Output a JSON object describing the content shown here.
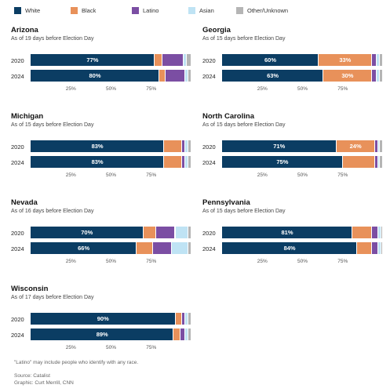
{
  "legend": [
    {
      "label": "White",
      "color": "#0b3d63"
    },
    {
      "label": "Black",
      "color": "#e8915a"
    },
    {
      "label": "Latino",
      "color": "#7b4ea3"
    },
    {
      "label": "Asian",
      "color": "#bfe3f4"
    },
    {
      "label": "Other/Unknown",
      "color": "#b5b5b5"
    }
  ],
  "tick_labels": [
    "25%",
    "50%",
    "75%"
  ],
  "notes": {
    "latino_note": "\"Latino\" may include people who identify with any race.",
    "source": "Source: Catalist",
    "credit": "Graphic: Curt Merrill, CNN"
  },
  "chart_data": [
    {
      "type": "bar",
      "title": "Arizona",
      "subtitle": "As of 19 days before Election Day",
      "categories": [
        "2020",
        "2024"
      ],
      "categories_are": "years",
      "stacked": true,
      "orientation": "horizontal",
      "xlim": [
        0,
        100
      ],
      "series": [
        {
          "name": "White",
          "values": [
            77,
            80
          ],
          "labels": [
            "77%",
            "80%"
          ]
        },
        {
          "name": "Black",
          "values": [
            5,
            4
          ],
          "labels": [
            "",
            ""
          ]
        },
        {
          "name": "Latino",
          "values": [
            13,
            12
          ],
          "labels": [
            "",
            ""
          ]
        },
        {
          "name": "Asian",
          "values": [
            2,
            2
          ],
          "labels": [
            "",
            ""
          ]
        },
        {
          "name": "Other/Unknown",
          "values": [
            3,
            2
          ],
          "labels": [
            "",
            ""
          ]
        }
      ]
    },
    {
      "type": "bar",
      "title": "Georgia",
      "subtitle": "As of 15 days before Election Day",
      "categories": [
        "2020",
        "2024"
      ],
      "stacked": true,
      "orientation": "horizontal",
      "xlim": [
        0,
        100
      ],
      "series": [
        {
          "name": "White",
          "values": [
            60,
            63
          ],
          "labels": [
            "60%",
            "63%"
          ]
        },
        {
          "name": "Black",
          "values": [
            33,
            30
          ],
          "labels": [
            "33%",
            "30%"
          ]
        },
        {
          "name": "Latino",
          "values": [
            3,
            3
          ],
          "labels": [
            "",
            ""
          ]
        },
        {
          "name": "Asian",
          "values": [
            2,
            2
          ],
          "labels": [
            "",
            ""
          ]
        },
        {
          "name": "Other/Unknown",
          "values": [
            2,
            2
          ],
          "labels": [
            "",
            ""
          ]
        }
      ]
    },
    {
      "type": "bar",
      "title": "Michigan",
      "subtitle": "As of 15 days before Election Day",
      "categories": [
        "2020",
        "2024"
      ],
      "stacked": true,
      "orientation": "horizontal",
      "xlim": [
        0,
        100
      ],
      "series": [
        {
          "name": "White",
          "values": [
            83,
            83
          ],
          "labels": [
            "83%",
            "83%"
          ]
        },
        {
          "name": "Black",
          "values": [
            11,
            11
          ],
          "labels": [
            "",
            ""
          ]
        },
        {
          "name": "Latino",
          "values": [
            2,
            2
          ],
          "labels": [
            "",
            ""
          ]
        },
        {
          "name": "Asian",
          "values": [
            2,
            2
          ],
          "labels": [
            "",
            ""
          ]
        },
        {
          "name": "Other/Unknown",
          "values": [
            2,
            2
          ],
          "labels": [
            "",
            ""
          ]
        }
      ]
    },
    {
      "type": "bar",
      "title": "North Carolina",
      "subtitle": "As of 15 days before Election Day",
      "categories": [
        "2020",
        "2024"
      ],
      "stacked": true,
      "orientation": "horizontal",
      "xlim": [
        0,
        100
      ],
      "series": [
        {
          "name": "White",
          "values": [
            71,
            75
          ],
          "labels": [
            "71%",
            "75%"
          ]
        },
        {
          "name": "Black",
          "values": [
            24,
            20
          ],
          "labels": [
            "24%",
            ""
          ]
        },
        {
          "name": "Latino",
          "values": [
            2,
            2
          ],
          "labels": [
            "",
            ""
          ]
        },
        {
          "name": "Asian",
          "values": [
            1,
            1
          ],
          "labels": [
            "",
            ""
          ]
        },
        {
          "name": "Other/Unknown",
          "values": [
            2,
            2
          ],
          "labels": [
            "",
            ""
          ]
        }
      ]
    },
    {
      "type": "bar",
      "title": "Nevada",
      "subtitle": "As of 16 days before Election Day",
      "categories": [
        "2020",
        "2024"
      ],
      "stacked": true,
      "orientation": "horizontal",
      "xlim": [
        0,
        100
      ],
      "series": [
        {
          "name": "White",
          "values": [
            70,
            66
          ],
          "labels": [
            "70%",
            "66%"
          ]
        },
        {
          "name": "Black",
          "values": [
            8,
            10
          ],
          "labels": [
            "",
            ""
          ]
        },
        {
          "name": "Latino",
          "values": [
            12,
            12
          ],
          "labels": [
            "",
            ""
          ]
        },
        {
          "name": "Asian",
          "values": [
            8,
            10
          ],
          "labels": [
            "",
            ""
          ]
        },
        {
          "name": "Other/Unknown",
          "values": [
            2,
            2
          ],
          "labels": [
            "",
            ""
          ]
        }
      ]
    },
    {
      "type": "bar",
      "title": "Pennsylvania",
      "subtitle": "As of 15 days before Election Day",
      "categories": [
        "2020",
        "2024"
      ],
      "stacked": true,
      "orientation": "horizontal",
      "xlim": [
        0,
        100
      ],
      "series": [
        {
          "name": "White",
          "values": [
            81,
            84
          ],
          "labels": [
            "81%",
            "84%"
          ]
        },
        {
          "name": "Black",
          "values": [
            12,
            9
          ],
          "labels": [
            "",
            ""
          ]
        },
        {
          "name": "Latino",
          "values": [
            4,
            4
          ],
          "labels": [
            "",
            ""
          ]
        },
        {
          "name": "Asian",
          "values": [
            2,
            2
          ],
          "labels": [
            "",
            ""
          ]
        },
        {
          "name": "Other/Unknown",
          "values": [
            1,
            1
          ],
          "labels": [
            "",
            ""
          ]
        }
      ]
    },
    {
      "type": "bar",
      "title": "Wisconsin",
      "subtitle": "As of 17 days before Election Day",
      "categories": [
        "2020",
        "2024"
      ],
      "stacked": true,
      "orientation": "horizontal",
      "xlim": [
        0,
        100
      ],
      "series": [
        {
          "name": "White",
          "values": [
            90,
            89
          ],
          "labels": [
            "90%",
            "89%"
          ]
        },
        {
          "name": "Black",
          "values": [
            4,
            4
          ],
          "labels": [
            "",
            ""
          ]
        },
        {
          "name": "Latino",
          "values": [
            2,
            3
          ],
          "labels": [
            "",
            ""
          ]
        },
        {
          "name": "Asian",
          "values": [
            2,
            2
          ],
          "labels": [
            "",
            ""
          ]
        },
        {
          "name": "Other/Unknown",
          "values": [
            2,
            2
          ],
          "labels": [
            "",
            ""
          ]
        }
      ]
    }
  ]
}
